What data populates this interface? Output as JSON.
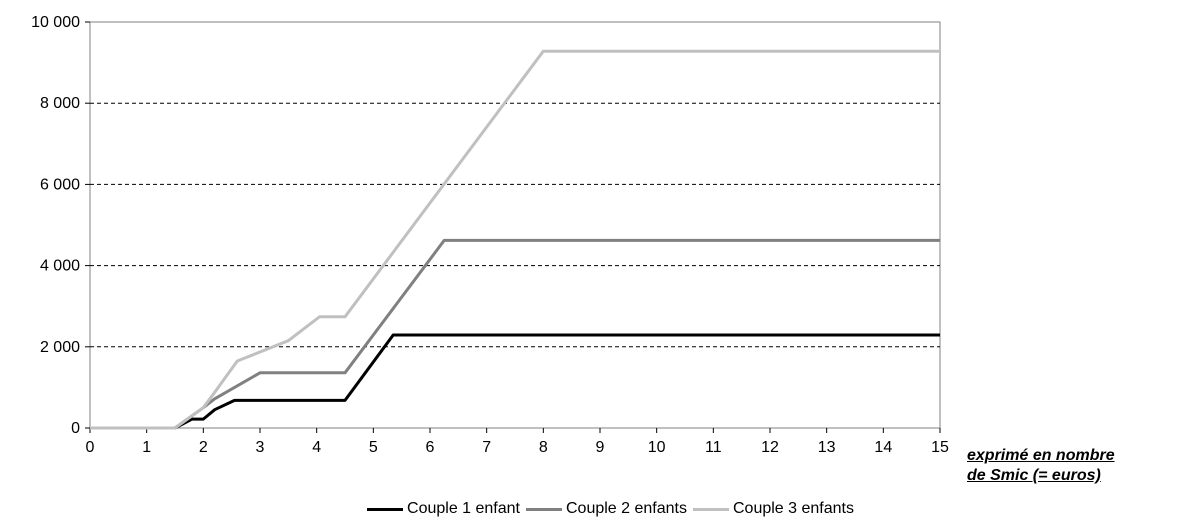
{
  "chart_data": {
    "type": "line",
    "title": "",
    "xlabel": "exprimé en nombre de Smic (= euros)",
    "xlabel_lines": [
      "exprimé en nombre",
      "de Smic (= euros)"
    ],
    "ylabel": "",
    "xlim": [
      0,
      15
    ],
    "ylim": [
      0,
      10000
    ],
    "x_ticks": [
      0,
      1,
      2,
      3,
      4,
      5,
      6,
      7,
      8,
      9,
      10,
      11,
      12,
      13,
      14,
      15
    ],
    "x_tick_labels": [
      "0",
      "1",
      "2",
      "3",
      "4",
      "5",
      "6",
      "7",
      "8",
      "9",
      "10",
      "11",
      "12",
      "13",
      "14",
      "15"
    ],
    "y_ticks": [
      0,
      2000,
      4000,
      6000,
      8000,
      10000
    ],
    "y_tick_labels": [
      "0",
      "2 000",
      "4 000",
      "6 000",
      "8 000",
      "10 000"
    ],
    "grid": "horizontal dashed",
    "legend_position": "bottom",
    "series": [
      {
        "name": "Couple 1 enfant",
        "color": "#000000",
        "points": [
          [
            0,
            0
          ],
          [
            1.5,
            0
          ],
          [
            1.8,
            220
          ],
          [
            2.0,
            220
          ],
          [
            2.2,
            450
          ],
          [
            2.55,
            680
          ],
          [
            4.5,
            680
          ],
          [
            5.35,
            2290
          ],
          [
            15,
            2290
          ]
        ]
      },
      {
        "name": "Couple 2 enfants",
        "color": "#808080",
        "points": [
          [
            0,
            0
          ],
          [
            1.5,
            0
          ],
          [
            2.0,
            500
          ],
          [
            2.2,
            720
          ],
          [
            3.0,
            1360
          ],
          [
            4.5,
            1360
          ],
          [
            6.25,
            4620
          ],
          [
            15,
            4620
          ]
        ]
      },
      {
        "name": "Couple 3 enfants",
        "color": "#c0c0c0",
        "points": [
          [
            0,
            0
          ],
          [
            1.5,
            0
          ],
          [
            2.0,
            500
          ],
          [
            2.2,
            880
          ],
          [
            2.6,
            1650
          ],
          [
            3.5,
            2150
          ],
          [
            4.05,
            2740
          ],
          [
            4.5,
            2740
          ],
          [
            8.0,
            9280
          ],
          [
            15,
            9280
          ]
        ]
      }
    ]
  }
}
